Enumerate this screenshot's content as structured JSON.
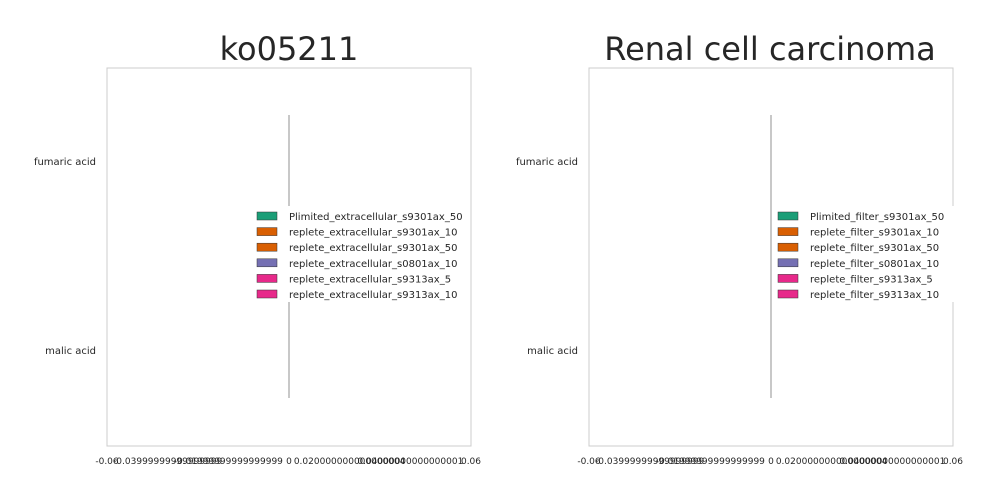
{
  "chart_data": [
    {
      "type": "bar",
      "orientation": "horizontal",
      "title": "ko05211",
      "categories": [
        "fumaric acid",
        "malic acid"
      ],
      "series": [
        {
          "name": "Plimited_extracellular_s9301ax_50",
          "color": "#1b9e77",
          "values": [
            0,
            0
          ]
        },
        {
          "name": "replete_extracellular_s9301ax_10",
          "color": "#d95f02",
          "values": [
            0,
            0
          ]
        },
        {
          "name": "replete_extracellular_s9301ax_50",
          "color": "#d95f02",
          "values": [
            0,
            0
          ]
        },
        {
          "name": "replete_extracellular_s0801ax_10",
          "color": "#7570b3",
          "values": [
            0,
            0
          ]
        },
        {
          "name": "replete_extracellular_s9313ax_5",
          "color": "#e7298a",
          "values": [
            0,
            0
          ]
        },
        {
          "name": "replete_extracellular_s9313ax_10",
          "color": "#e7298a",
          "values": [
            0,
            0
          ]
        }
      ],
      "xlim": [
        -0.06,
        0.06
      ],
      "x_ticks": [
        "-0.06",
        "-0.03999999999999999",
        "-0.01999999999999999",
        "0",
        "0.020000000000000004",
        "0.04000000000000001",
        "0.06"
      ],
      "x_tick_values": [
        -0.06,
        -0.04,
        -0.02,
        0,
        0.02,
        0.04,
        0.06
      ],
      "zero_line": true,
      "legend_position": "center-right"
    },
    {
      "type": "bar",
      "orientation": "horizontal",
      "title": "Renal cell carcinoma",
      "categories": [
        "fumaric acid",
        "malic acid"
      ],
      "series": [
        {
          "name": "Plimited_filter_s9301ax_50",
          "color": "#1b9e77",
          "values": [
            0,
            0
          ]
        },
        {
          "name": "replete_filter_s9301ax_10",
          "color": "#d95f02",
          "values": [
            0,
            0
          ]
        },
        {
          "name": "replete_filter_s9301ax_50",
          "color": "#d95f02",
          "values": [
            0,
            0
          ]
        },
        {
          "name": "replete_filter_s0801ax_10",
          "color": "#7570b3",
          "values": [
            0,
            0
          ]
        },
        {
          "name": "replete_filter_s9313ax_5",
          "color": "#e7298a",
          "values": [
            0,
            0
          ]
        },
        {
          "name": "replete_filter_s9313ax_10",
          "color": "#e7298a",
          "values": [
            0,
            0
          ]
        }
      ],
      "xlim": [
        -0.06,
        0.06
      ],
      "x_ticks": [
        "-0.06",
        "-0.03999999999999999",
        "-0.01999999999999999",
        "0",
        "0.020000000000000004",
        "0.04000000000000001",
        "0.06"
      ],
      "x_tick_values": [
        -0.06,
        -0.04,
        -0.02,
        0,
        0.02,
        0.04,
        0.06
      ],
      "zero_line": true,
      "legend_position": "center-right"
    }
  ]
}
